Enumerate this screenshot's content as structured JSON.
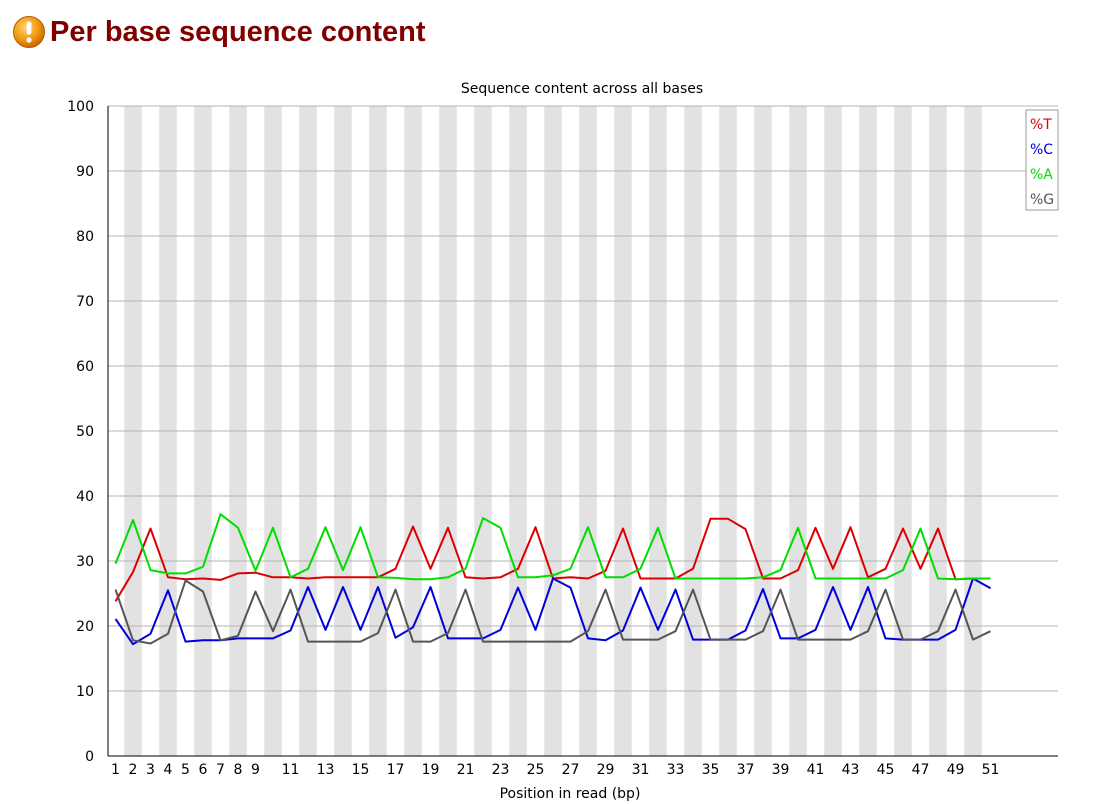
{
  "module": {
    "title": "Per base sequence content",
    "status_icon": "warning-icon",
    "status_color": "#f39c12"
  },
  "chart_data": {
    "type": "line",
    "title": "Sequence content across all bases",
    "xlabel": "Position in read (bp)",
    "ylabel": "",
    "ylim": [
      0,
      100
    ],
    "yticks": [
      0,
      10,
      20,
      30,
      40,
      50,
      60,
      70,
      80,
      90,
      100
    ],
    "xticks": [
      "1",
      "2",
      "3",
      "4",
      "5",
      "6",
      "7",
      "8",
      "9",
      "11",
      "13",
      "15",
      "17",
      "19",
      "21",
      "23",
      "25",
      "27",
      "29",
      "31",
      "33",
      "35",
      "37",
      "39",
      "41",
      "43",
      "45",
      "47",
      "49",
      "51"
    ],
    "grid": true,
    "legend_position": "top-right",
    "x": [
      1,
      2,
      3,
      4,
      5,
      6,
      7,
      8,
      9,
      10,
      11,
      12,
      13,
      14,
      15,
      16,
      17,
      18,
      19,
      20,
      21,
      22,
      23,
      24,
      25,
      26,
      27,
      28,
      29,
      30,
      31,
      32,
      33,
      34,
      35,
      36,
      37,
      38,
      39,
      40,
      41,
      42,
      43,
      44,
      45,
      46,
      47,
      48,
      49,
      50,
      51
    ],
    "series": [
      {
        "name": "%T",
        "color": "#dd0000",
        "values": [
          23.8,
          28.3,
          35.0,
          27.5,
          27.2,
          27.3,
          27.1,
          28.1,
          28.2,
          27.5,
          27.5,
          27.3,
          27.5,
          27.5,
          27.5,
          27.5,
          28.8,
          35.3,
          28.8,
          35.1,
          27.5,
          27.3,
          27.5,
          28.8,
          35.2,
          27.3,
          27.5,
          27.3,
          28.5,
          35.0,
          27.3,
          27.3,
          27.3,
          28.8,
          36.5,
          36.5,
          34.9,
          27.3,
          27.3,
          28.6,
          35.1,
          28.8,
          35.2,
          27.5,
          28.8,
          35.0,
          28.8,
          35.0,
          27.2,
          27.3,
          27.3
        ]
      },
      {
        "name": "%C",
        "color": "#0000dd",
        "values": [
          21.1,
          17.2,
          18.8,
          25.5,
          17.6,
          17.8,
          17.8,
          18.1,
          18.1,
          18.1,
          19.3,
          26.0,
          19.4,
          26.0,
          19.4,
          26.0,
          18.2,
          19.8,
          26.0,
          18.1,
          18.1,
          18.1,
          19.4,
          25.9,
          19.4,
          27.3,
          25.9,
          18.1,
          17.8,
          19.3,
          25.9,
          19.4,
          25.6,
          17.9,
          17.9,
          17.9,
          19.3,
          25.7,
          18.1,
          18.1,
          19.4,
          26.0,
          19.4,
          26.0,
          18.1,
          17.9,
          17.9,
          17.9,
          19.4,
          27.3,
          25.8
        ]
      },
      {
        "name": "%A",
        "color": "#00dd00",
        "values": [
          29.6,
          36.3,
          28.6,
          28.1,
          28.1,
          29.1,
          37.2,
          35.1,
          28.5,
          35.1,
          27.5,
          28.8,
          35.2,
          28.6,
          35.2,
          27.5,
          27.4,
          27.2,
          27.2,
          27.5,
          28.8,
          36.6,
          35.1,
          27.5,
          27.5,
          27.8,
          28.8,
          35.2,
          27.5,
          27.5,
          28.8,
          35.1,
          27.3,
          27.3,
          27.3,
          27.3,
          27.3,
          27.5,
          28.6,
          35.1,
          27.3,
          27.3,
          27.3,
          27.3,
          27.3,
          28.6,
          35.0,
          27.3,
          27.2,
          27.3,
          27.3
        ]
      },
      {
        "name": "%G",
        "color": "#555555",
        "values": [
          25.6,
          17.8,
          17.3,
          18.8,
          27.0,
          25.3,
          17.8,
          18.5,
          25.3,
          19.2,
          25.6,
          17.6,
          17.6,
          17.6,
          17.6,
          18.9,
          25.6,
          17.6,
          17.6,
          18.9,
          25.6,
          17.6,
          17.6,
          17.6,
          17.6,
          17.6,
          17.6,
          19.2,
          25.6,
          17.9,
          17.9,
          17.9,
          19.2,
          25.6,
          17.9,
          17.9,
          17.9,
          19.2,
          25.6,
          17.9,
          17.9,
          17.9,
          17.9,
          19.2,
          25.6,
          17.9,
          17.9,
          19.2,
          25.6,
          17.9,
          19.2
        ]
      }
    ]
  }
}
